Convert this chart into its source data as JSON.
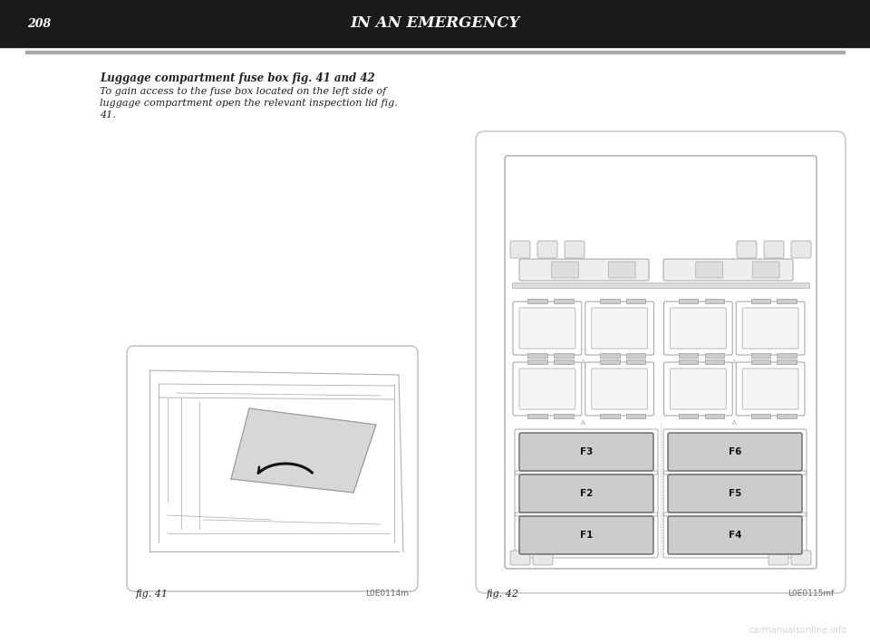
{
  "page_number": "208",
  "header_title": "IN AN EMERGENCY",
  "section_title": "Luggage compartment fuse box fig. 41 and 42",
  "body_text_line1": "To gain access to the fuse box located on the left side of",
  "body_text_line2": "luggage compartment open the relevant inspection lid fig.",
  "body_text_line3": "41.",
  "fig_label_left": "fig. 41",
  "fig_label_right": "fig. 42",
  "fig_code_left": "L0E0114m",
  "fig_code_right": "L0E0115mf",
  "watermark": "carmanualsonline.info",
  "bg_color": "#ffffff",
  "header_bg": "#1a1a1a",
  "header_text_color": "#ffffff",
  "body_text_color": "#222222",
  "fig_label_color": "#222222",
  "code_color": "#666666",
  "line_color": "#999999",
  "fuse_line_color": "#888888",
  "fuse_box_bg": "#ffffff",
  "fuse_labeled_color": "#cccccc",
  "fuse_labeled_edge": "#666666",
  "relay_color": "#f0f0f0",
  "relay_edge": "#888888"
}
